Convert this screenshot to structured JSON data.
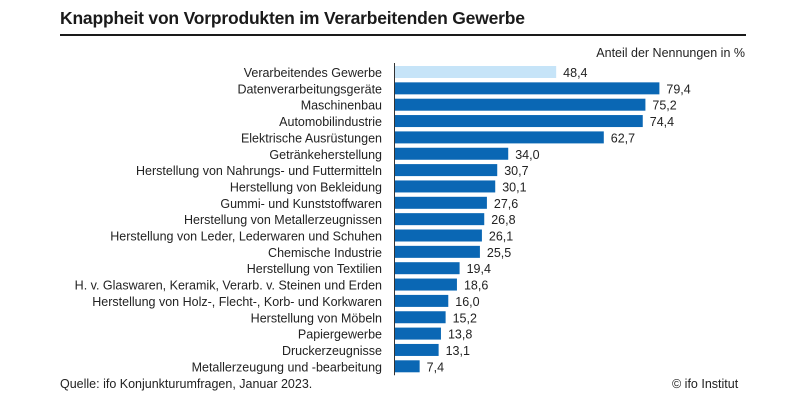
{
  "header": {
    "title": "Knappheit von Vorprodukten im Verarbeitenden Gewerbe",
    "unit_label": "Anteil der Nennungen in %"
  },
  "footer": {
    "source": "Quelle: ifo Konjunkturumfragen, Januar 2023.",
    "copyright": "© ifo Institut"
  },
  "colors": {
    "highlight_bar": "#c6e4f8",
    "bar": "#0a67b4",
    "axis": "#333333"
  },
  "chart_data": {
    "type": "bar",
    "orientation": "horizontal",
    "title": "Knappheit von Vorprodukten im Verarbeitenden Gewerbe",
    "xlabel": "Anteil der Nennungen in %",
    "ylabel": "",
    "xlim": [
      0,
      100
    ],
    "grid": false,
    "legend": "none",
    "categories": [
      "Verarbeitendes Gewerbe",
      "Datenverarbeitungsgeräte",
      "Maschinenbau",
      "Automobilindustrie",
      "Elektrische Ausrüstungen",
      "Getränkeherstellung",
      "Herstellung von Nahrungs- und Futtermitteln",
      "Herstellung von Bekleidung",
      "Gummi- und Kunststoffwaren",
      "Herstellung von Metallerzeugnissen",
      "Herstellung von Leder, Lederwaren und Schuhen",
      "Chemische Industrie",
      "Herstellung von Textilien",
      "H. v. Glaswaren, Keramik, Verarb. v. Steinen und Erden",
      "Herstellung von Holz-, Flecht-, Korb- und Korkwaren",
      "Herstellung von Möbeln",
      "Papiergewerbe",
      "Druckerzeugnisse",
      "Metallerzeugung und -bearbeitung"
    ],
    "values": [
      48.4,
      79.4,
      75.2,
      74.4,
      62.7,
      34.0,
      30.7,
      30.1,
      27.6,
      26.8,
      26.1,
      25.5,
      19.4,
      18.6,
      16.0,
      15.2,
      13.8,
      13.1,
      7.4
    ],
    "value_labels": [
      "48,4",
      "79,4",
      "75,2",
      "74,4",
      "62,7",
      "34,0",
      "30,7",
      "30,1",
      "27,6",
      "26,8",
      "26,1",
      "25,5",
      "19,4",
      "18,6",
      "16,0",
      "15,2",
      "13,8",
      "13,1",
      "7,4"
    ],
    "highlighted_index": 0
  }
}
